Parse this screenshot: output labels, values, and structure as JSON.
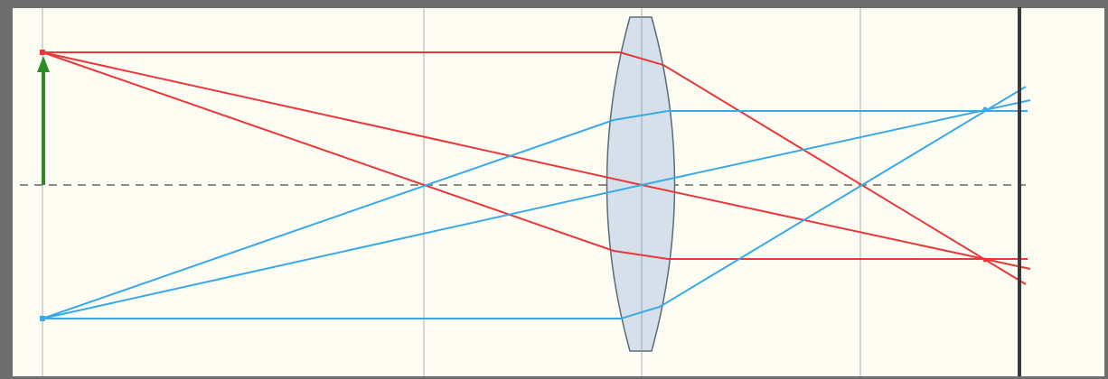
{
  "diagram": {
    "colors": {
      "frame": "#6e6e6e",
      "background": "#fdfcf3",
      "gridline": "#c9c9c3",
      "axis": "#8c8c86",
      "object_arrow": "#2a8c2a",
      "ray_top_object": "#e8383c",
      "ray_bottom_object": "#3aa9e8",
      "lens_fill": "#d6e0ea",
      "lens_stroke": "#5a6b7a",
      "screen": "#3b3b3b"
    },
    "elements": {
      "object": "object-arrow-icon",
      "lens": "biconvex-lens-icon",
      "screen": "image-screen-icon"
    }
  }
}
